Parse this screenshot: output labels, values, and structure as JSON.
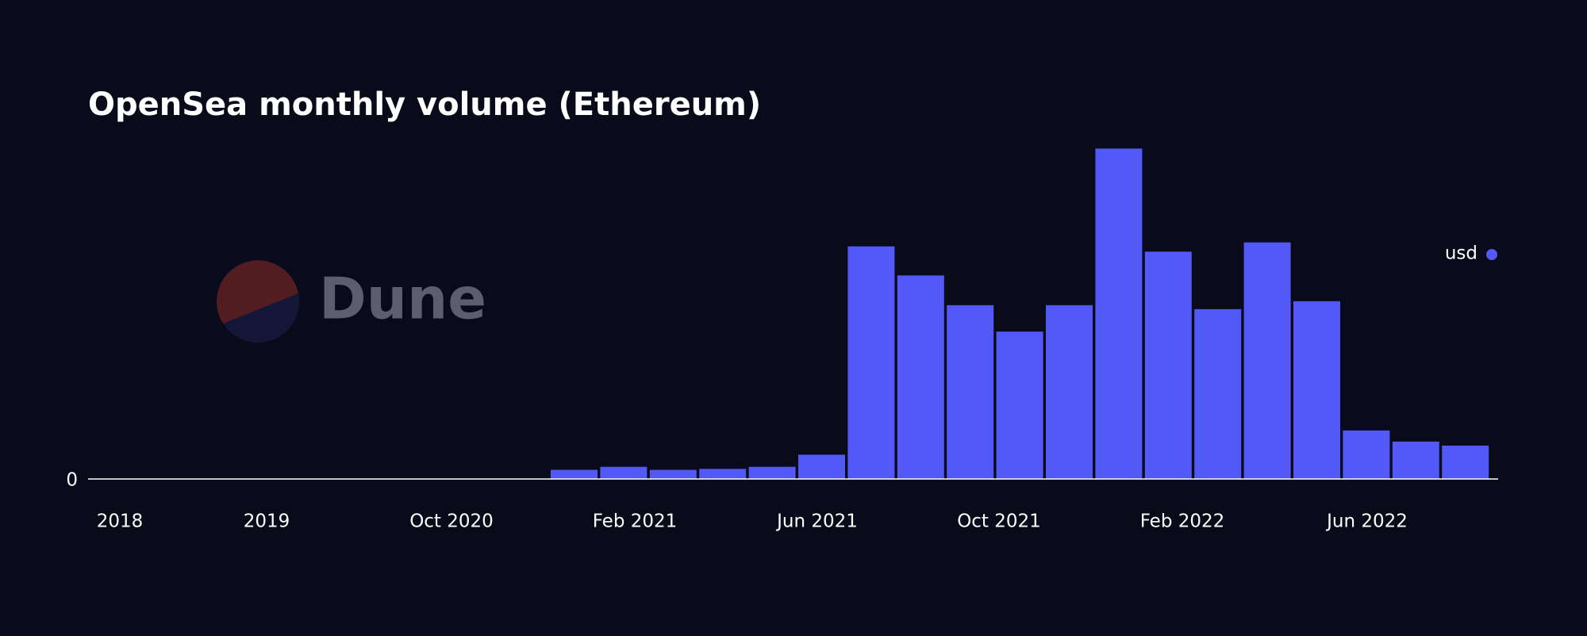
{
  "chart_data": {
    "type": "bar",
    "title": "OpenSea monthly volume (Ethereum)",
    "watermark": "Dune",
    "categories": [
      null,
      null,
      null,
      null,
      null,
      null,
      null,
      null,
      null,
      null,
      null,
      null,
      null,
      null,
      null,
      null,
      null,
      null,
      null
    ],
    "xtick_labels": [
      "2018",
      "2019",
      "Oct 2020",
      "Feb 2021",
      "Jun 2021",
      "Oct 2021",
      "Feb 2022",
      "Jun 2022"
    ],
    "series": [
      {
        "name": "usd",
        "color": "#5359f6",
        "values": [
          138000000,
          184000000,
          138000000,
          153000000,
          184000000,
          367000000,
          3520000000,
          3080000000,
          2630000000,
          2230000000,
          2630000000,
          5000000000,
          3440000000,
          2570000000,
          3580000000,
          2690000000,
          734000000,
          566000000,
          505000000
        ]
      }
    ],
    "ylim": [
      0,
      5100000000
    ],
    "yticks": [
      0
    ],
    "legend": "top-right"
  }
}
